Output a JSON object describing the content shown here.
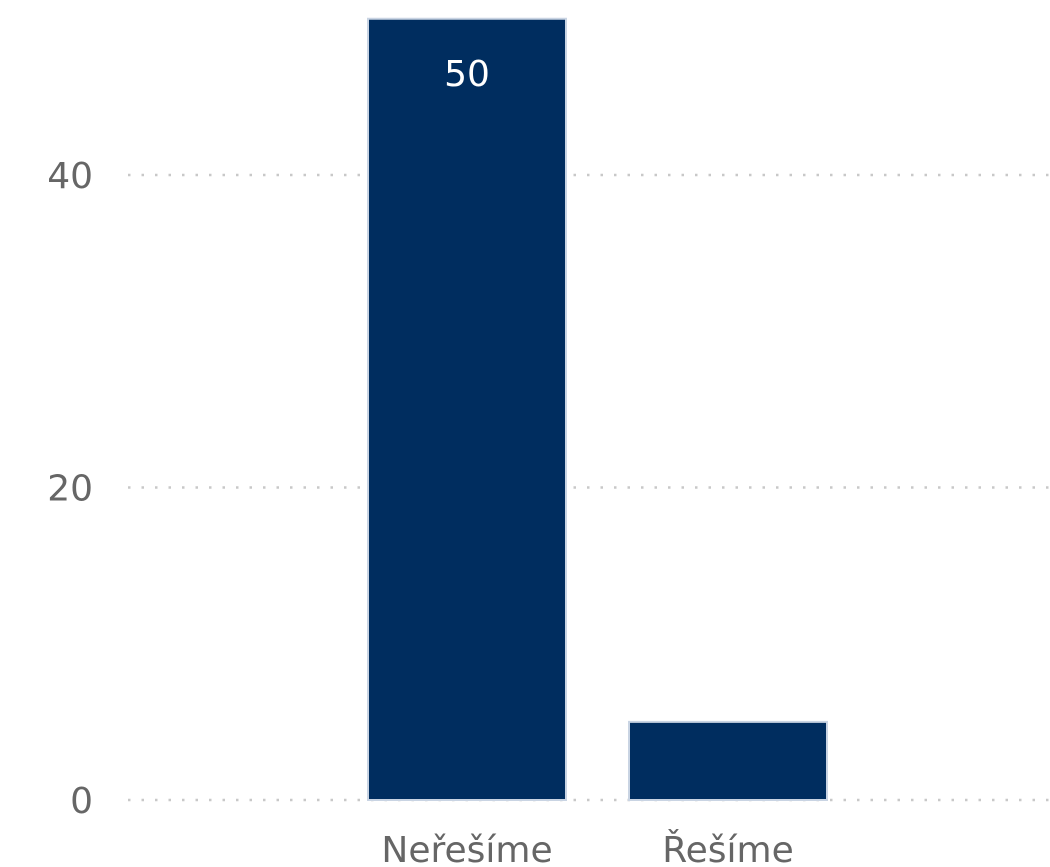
{
  "chart_data": {
    "type": "bar",
    "categories": [
      "Neřešíme",
      "Řešíme"
    ],
    "values": [
      50,
      5
    ],
    "data_labels": [
      "50",
      ""
    ],
    "yticks": [
      0,
      20,
      40
    ],
    "ylim": [
      0,
      50
    ],
    "grid": true,
    "bar_color": "#002D5F",
    "bar_border_color": "#C9D4E3"
  }
}
